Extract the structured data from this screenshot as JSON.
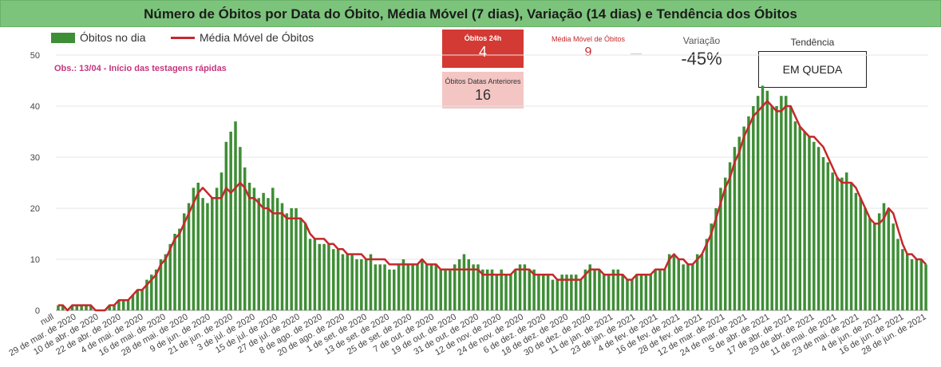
{
  "title": "Número de Óbitos por Data do Óbito, Média Móvel (7 dias), Variação (14 dias) e Tendência dos Óbitos",
  "legend": {
    "bars": "Óbitos no dia",
    "line": "Média Móvel de Óbitos"
  },
  "note": "Obs.: 13/04 - Início das testagens rápidas",
  "kpis": {
    "obitos_24h": {
      "label": "Óbitos 24h",
      "value": "4"
    },
    "obitos_anteriores": {
      "label": "Óbitos Datas Anteriores",
      "value": "16"
    },
    "media_movel": {
      "label": "Média Móvel de Óbitos",
      "value": "9"
    },
    "variacao": {
      "label": "Variação",
      "value": "-45%"
    },
    "tendencia": {
      "label": "Tendência",
      "value": "EM QUEDA"
    }
  },
  "colors": {
    "bars": "#3e8e35",
    "line": "#c6282b",
    "header": "#7cc47c"
  },
  "chart_data": {
    "type": "bar",
    "title": "Número de Óbitos por Data do Óbito, Média Móvel (7 dias), Variação (14 dias) e Tendência dos Óbitos",
    "ylim": [
      0,
      50
    ],
    "y_ticks": [
      0,
      10,
      20,
      30,
      40,
      50
    ],
    "x_start_label": "null",
    "x_tick_labels": [
      "null",
      "29 de mar. de 2020",
      "10 de abr. de 2020",
      "22 de abr. de 2020",
      "4 de mai. de 2020",
      "16 de mai. de 2020",
      "28 de mai. de 2020",
      "9 de jun. de 2020",
      "21 de jun. de 2020",
      "3 de jul. de 2020",
      "15 de jul. de 2020",
      "27 de jul. de 2020",
      "8 de ago. de 2020",
      "20 de ago. de 2020",
      "1 de set. de 2020",
      "13 de set. de 2020",
      "25 de set. de 2020",
      "7 de out. de 2020",
      "19 de out. de 2020",
      "31 de out. de 2020",
      "12 de nov. de 2020",
      "24 de nov. de 2020",
      "6 de dez. de 2020",
      "18 de dez. de 2020",
      "30 de dez. de 2020",
      "11 de jan. de 2021",
      "23 de jan. de 2021",
      "4 de fev. de 2021",
      "16 de fev. de 2021",
      "28 de fev. de 2021",
      "12 de mar. de 2021",
      "24 de mar. de 2021",
      "5 de abr. de 2021",
      "17 de abr. de 2021",
      "29 de abr. de 2021",
      "11 de mai. de 2021",
      "23 de mai. de 2021",
      "4 de jun. de 2021",
      "16 de jun. de 2021",
      "28 de jun. de 2021"
    ],
    "series": [
      {
        "name": "Óbitos no dia",
        "kind": "bar",
        "values": [
          1,
          1,
          0,
          1,
          1,
          1,
          1,
          1,
          0,
          0,
          0,
          1,
          1,
          2,
          2,
          2,
          3,
          4,
          4,
          6,
          7,
          8,
          10,
          11,
          13,
          15,
          16,
          19,
          21,
          24,
          25,
          22,
          21,
          22,
          24,
          27,
          33,
          35,
          37,
          32,
          28,
          25,
          24,
          22,
          23,
          22,
          24,
          22,
          21,
          19,
          20,
          20,
          18,
          17,
          14,
          14,
          13,
          13,
          13,
          12,
          12,
          11,
          11,
          11,
          10,
          10,
          10,
          11,
          9,
          9,
          9,
          8,
          8,
          9,
          10,
          9,
          9,
          9,
          10,
          9,
          9,
          9,
          8,
          8,
          8,
          9,
          10,
          11,
          10,
          9,
          9,
          8,
          8,
          8,
          7,
          8,
          7,
          7,
          8,
          9,
          9,
          8,
          8,
          7,
          7,
          7,
          6,
          6,
          7,
          7,
          7,
          7,
          6,
          8,
          9,
          8,
          8,
          7,
          7,
          8,
          8,
          7,
          6,
          6,
          7,
          7,
          7,
          7,
          8,
          8,
          8,
          11,
          11,
          10,
          9,
          9,
          9,
          11,
          11,
          14,
          17,
          20,
          24,
          26,
          29,
          32,
          34,
          36,
          38,
          40,
          42,
          44,
          43,
          40,
          40,
          42,
          42,
          40,
          37,
          36,
          35,
          34,
          33,
          32,
          30,
          29,
          27,
          26,
          26,
          27,
          25,
          23,
          22,
          20,
          18,
          17,
          19,
          21,
          20,
          17,
          14,
          12,
          11,
          10,
          10,
          10,
          9
        ]
      },
      {
        "name": "Média Móvel de Óbitos",
        "kind": "line",
        "values": [
          1,
          1,
          0,
          1,
          1,
          1,
          1,
          1,
          0,
          0,
          0,
          1,
          1,
          2,
          2,
          2,
          3,
          4,
          4,
          5,
          6,
          7,
          9,
          10,
          12,
          14,
          15,
          17,
          19,
          21,
          23,
          24,
          23,
          22,
          22,
          22,
          24,
          23,
          24,
          25,
          24,
          22,
          22,
          21,
          20,
          20,
          19,
          19,
          19,
          18,
          18,
          18,
          18,
          17,
          15,
          14,
          14,
          14,
          13,
          13,
          12,
          12,
          11,
          11,
          11,
          11,
          10,
          10,
          10,
          10,
          10,
          9,
          9,
          9,
          9,
          9,
          9,
          9,
          10,
          9,
          9,
          9,
          8,
          8,
          8,
          8,
          8,
          8,
          8,
          8,
          8,
          7,
          7,
          7,
          7,
          7,
          7,
          7,
          8,
          8,
          8,
          8,
          7,
          7,
          7,
          7,
          7,
          6,
          6,
          6,
          6,
          6,
          6,
          7,
          8,
          8,
          8,
          7,
          7,
          7,
          7,
          7,
          6,
          6,
          7,
          7,
          7,
          7,
          8,
          8,
          8,
          10,
          11,
          10,
          10,
          9,
          9,
          10,
          11,
          13,
          15,
          18,
          21,
          24,
          26,
          29,
          31,
          34,
          36,
          38,
          39,
          40,
          41,
          40,
          39,
          39,
          40,
          40,
          38,
          36,
          35,
          34,
          34,
          33,
          32,
          30,
          28,
          26,
          25,
          25,
          25,
          24,
          22,
          20,
          18,
          17,
          17,
          18,
          20,
          19,
          16,
          13,
          11,
          11,
          10,
          10,
          9
        ]
      }
    ]
  }
}
